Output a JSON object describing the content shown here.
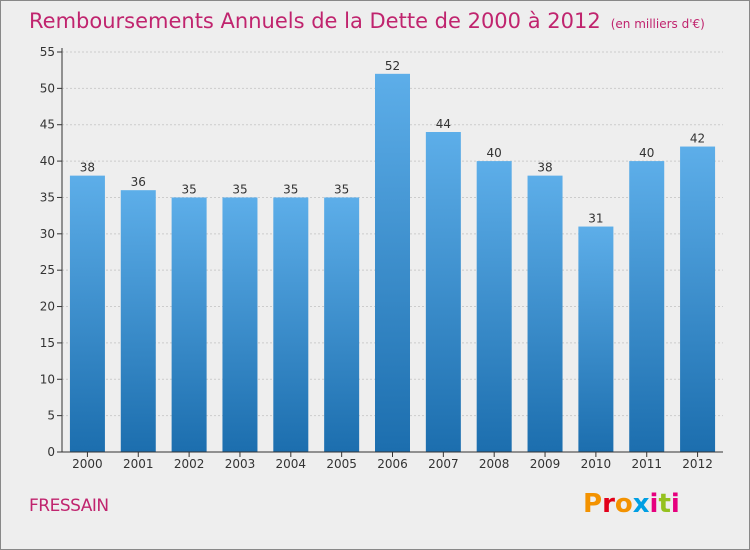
{
  "header": {
    "title": "Remboursements Annuels de la Dette de 2000 à 2012",
    "subtitle": "(en milliers d'€)"
  },
  "footer": {
    "commune": "FRESSAIN",
    "logo_text": "Proxiti",
    "logo_colors": [
      "#f39200",
      "#e2001a",
      "#f39200",
      "#009fe3",
      "#e6007e",
      "#95c11f",
      "#e6007e"
    ]
  },
  "colors": {
    "accent": "#c0246e",
    "bar_top": "#5daee9",
    "bar_bottom": "#1c6eae",
    "axis": "#333333",
    "grid": "#cccccc"
  },
  "chart_data": {
    "type": "bar",
    "title": "Remboursements Annuels de la Dette de 2000 à 2012",
    "xlabel": "",
    "ylabel": "",
    "categories": [
      "2000",
      "2001",
      "2002",
      "2003",
      "2004",
      "2005",
      "2006",
      "2007",
      "2008",
      "2009",
      "2010",
      "2011",
      "2012"
    ],
    "values": [
      38,
      36,
      35,
      35,
      35,
      35,
      52,
      44,
      40,
      38,
      31,
      40,
      42
    ],
    "ylim": [
      0,
      55
    ],
    "yticks": [
      0,
      5,
      10,
      15,
      20,
      25,
      30,
      35,
      40,
      45,
      50,
      55
    ],
    "grid": "horizontal"
  }
}
